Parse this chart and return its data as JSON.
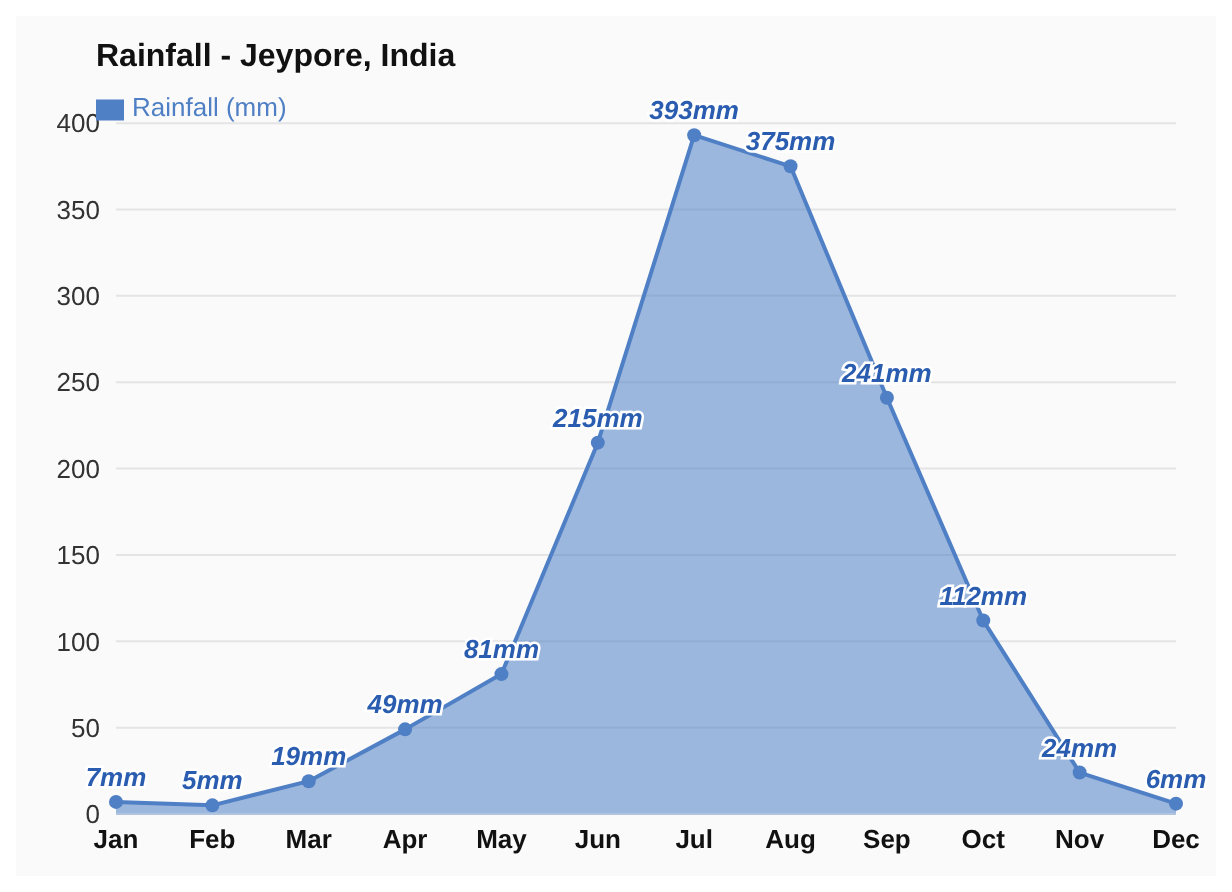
{
  "chart_data": {
    "type": "area",
    "title": "Rainfall - Jeypore, India",
    "categories": [
      "Jan",
      "Feb",
      "Mar",
      "Apr",
      "May",
      "Jun",
      "Jul",
      "Aug",
      "Sep",
      "Oct",
      "Nov",
      "Dec"
    ],
    "series": [
      {
        "name": "Rainfall (mm)",
        "color": "#4f7fc4",
        "values": [
          7,
          5,
          19,
          49,
          81,
          215,
          393,
          375,
          241,
          112,
          24,
          6
        ],
        "value_labels": [
          "7mm",
          "5mm",
          "19mm",
          "49mm",
          "81mm",
          "215mm",
          "393mm",
          "375mm",
          "241mm",
          "112mm",
          "24mm",
          "6mm"
        ]
      }
    ],
    "ylim": [
      0,
      400
    ],
    "yticks": [
      0,
      50,
      100,
      150,
      200,
      250,
      300,
      350,
      400
    ],
    "grid": "y",
    "legend": "top left",
    "marker": "circle"
  }
}
